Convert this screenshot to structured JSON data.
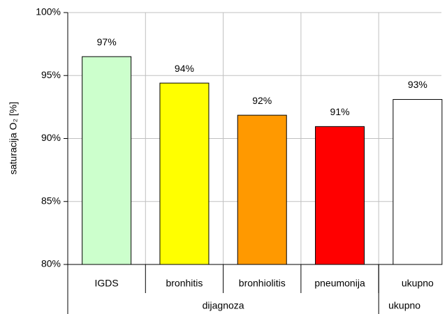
{
  "chart_data": {
    "type": "bar",
    "ylabel": "saturacija O₂ [%]",
    "categories": [
      "IGDS",
      "bronhitis",
      "bronhiolitis",
      "pneumonija",
      "ukupno"
    ],
    "values": [
      96.5,
      94.4,
      91.85,
      90.95,
      93.1
    ],
    "value_labels": [
      "97%",
      "94%",
      "92%",
      "91%",
      "93%"
    ],
    "colors": [
      "#ccffcc",
      "#ffff00",
      "#ff9900",
      "#ff0000",
      "#ffffff"
    ],
    "groups": [
      {
        "name": "dijagnoza",
        "span": 4
      },
      {
        "name": "ukupno",
        "span": 1
      }
    ],
    "ylim": [
      80,
      100
    ],
    "yticks": [
      {
        "value": 80,
        "label": "80%"
      },
      {
        "value": 85,
        "label": "85%"
      },
      {
        "value": 90,
        "label": "90%"
      },
      {
        "value": 95,
        "label": "95%"
      },
      {
        "value": 100,
        "label": "100%"
      }
    ],
    "grid": true
  }
}
